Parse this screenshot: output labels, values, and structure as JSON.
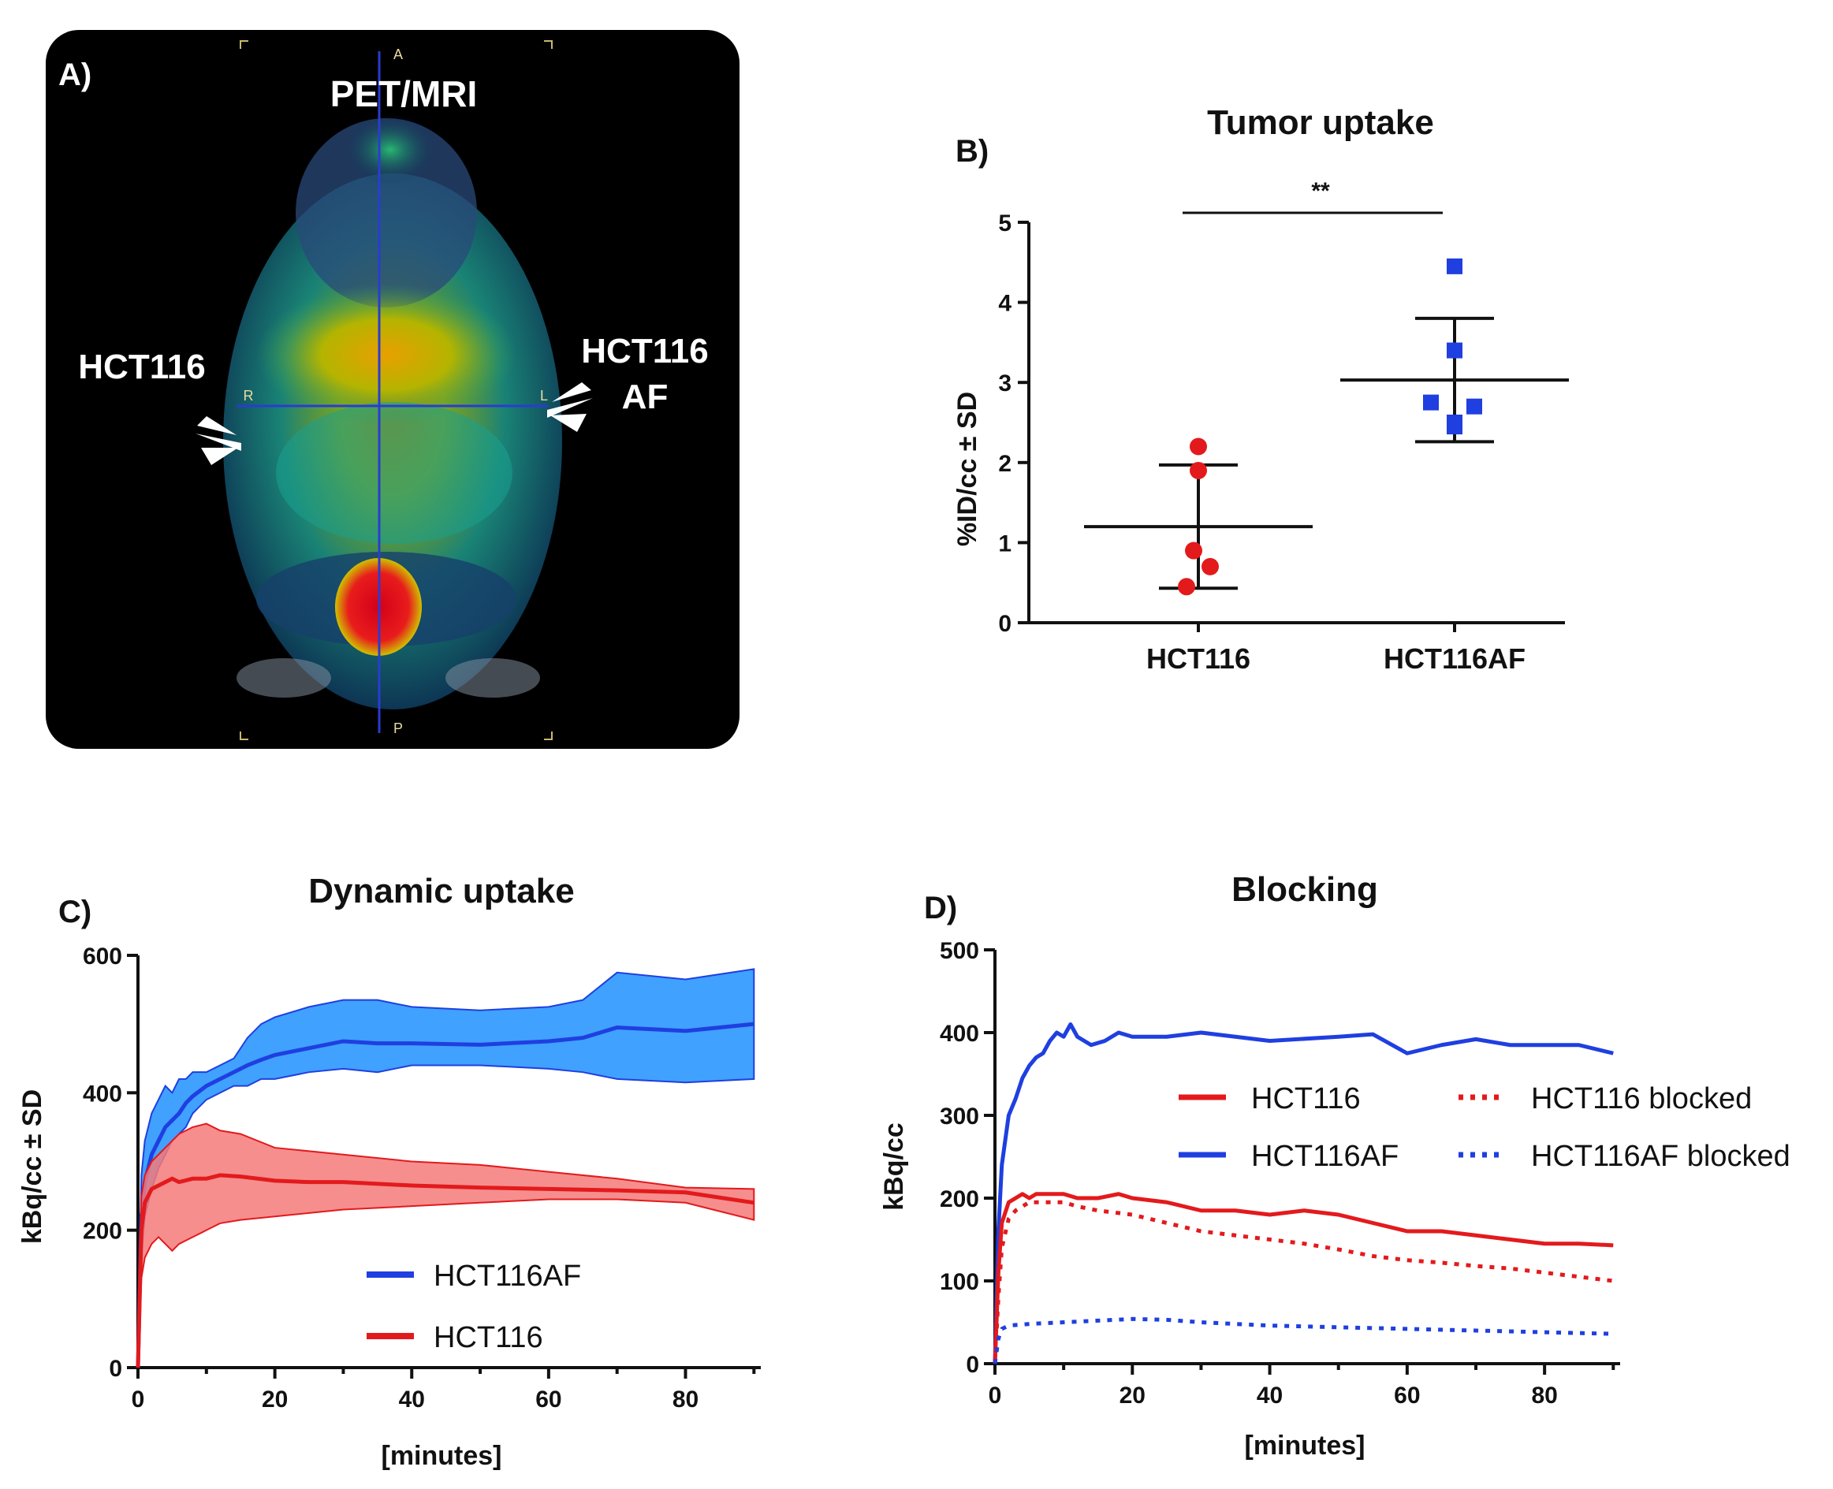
{
  "panel_a": {
    "letter": "A)",
    "modality": "PET/MRI",
    "left_label": "HCT116",
    "right_label_line1": "HCT116",
    "right_label_line2": "AF",
    "orientation": {
      "top": "A",
      "bottom": "P",
      "left": "R",
      "right": "L"
    }
  },
  "chart_data": [
    {
      "id": "B",
      "panel_letter": "B)",
      "type": "scatter",
      "title": "Tumor uptake",
      "ylabel": "%ID/cc ± SD",
      "ylim": [
        0,
        5
      ],
      "yticks": [
        "0",
        "1",
        "2",
        "3",
        "4",
        "5"
      ],
      "categories": [
        "HCT116",
        "HCT116AF"
      ],
      "significance": "**",
      "colors": {
        "HCT116": "#e31a1c",
        "HCT116AF": "#1f3fe0"
      },
      "series": [
        {
          "name": "HCT116",
          "marker": "circle",
          "values": [
            2.2,
            1.9,
            0.9,
            0.7,
            0.45
          ],
          "mean": 1.2,
          "sd": 0.77
        },
        {
          "name": "HCT116AF",
          "marker": "square",
          "values": [
            4.45,
            3.4,
            2.75,
            2.7,
            2.5,
            2.45
          ],
          "mean": 3.03,
          "sd": 0.77
        }
      ]
    },
    {
      "id": "C",
      "panel_letter": "C)",
      "type": "area",
      "title": "Dynamic uptake",
      "xlabel": "[minutes]",
      "ylabel": "kBq/cc ± SD",
      "xlim": [
        0,
        91
      ],
      "ylim": [
        0,
        600
      ],
      "xticks": [
        "0",
        "20",
        "40",
        "60",
        "80"
      ],
      "yticks": [
        "0",
        "200",
        "400",
        "600"
      ],
      "colors": {
        "HCT116AF": "#1f3fe0",
        "HCT116AF_fill": "#1e90ff",
        "HCT116": "#e31a1c",
        "HCT116_fill": "#f47a7a"
      },
      "series": [
        {
          "name": "HCT116AF",
          "x": [
            0,
            0.5,
            1,
            2,
            3,
            4,
            5,
            6,
            7,
            8,
            10,
            12,
            14,
            16,
            18,
            20,
            25,
            30,
            35,
            40,
            50,
            60,
            65,
            70,
            80,
            90
          ],
          "mean": [
            0,
            220,
            270,
            310,
            330,
            350,
            360,
            370,
            385,
            395,
            410,
            420,
            430,
            440,
            448,
            455,
            465,
            475,
            472,
            472,
            470,
            475,
            480,
            495,
            490,
            500
          ],
          "upper": [
            0,
            280,
            330,
            370,
            390,
            410,
            400,
            420,
            420,
            430,
            430,
            440,
            450,
            480,
            500,
            510,
            525,
            535,
            535,
            525,
            520,
            525,
            535,
            575,
            565,
            580
          ],
          "lower": [
            0,
            160,
            220,
            260,
            290,
            310,
            330,
            340,
            350,
            370,
            390,
            400,
            410,
            410,
            420,
            420,
            430,
            435,
            430,
            440,
            440,
            435,
            430,
            420,
            415,
            420
          ]
        },
        {
          "name": "HCT116",
          "x": [
            0,
            0.5,
            1,
            2,
            3,
            4,
            5,
            6,
            8,
            10,
            12,
            15,
            20,
            25,
            30,
            40,
            50,
            60,
            70,
            80,
            90
          ],
          "mean": [
            0,
            200,
            240,
            260,
            265,
            270,
            275,
            270,
            275,
            275,
            280,
            278,
            272,
            270,
            270,
            265,
            262,
            260,
            258,
            255,
            240
          ],
          "upper": [
            0,
            250,
            280,
            300,
            310,
            320,
            330,
            340,
            350,
            355,
            345,
            340,
            320,
            315,
            310,
            300,
            295,
            285,
            275,
            262,
            260
          ],
          "lower": [
            0,
            130,
            160,
            180,
            190,
            180,
            170,
            180,
            190,
            200,
            210,
            215,
            220,
            225,
            230,
            235,
            240,
            245,
            245,
            240,
            215
          ]
        }
      ],
      "legend": [
        {
          "name": "HCT116AF"
        },
        {
          "name": "HCT116"
        }
      ]
    },
    {
      "id": "D",
      "panel_letter": "D)",
      "type": "line",
      "title": "Blocking",
      "xlabel": "[minutes]",
      "ylabel": "kBq/cc",
      "xlim": [
        0,
        91
      ],
      "ylim": [
        0,
        500
      ],
      "xticks": [
        "0",
        "20",
        "40",
        "60",
        "80"
      ],
      "yticks": [
        "0",
        "100",
        "200",
        "300",
        "400",
        "500"
      ],
      "colors": {
        "HCT116": "#e31a1c",
        "HCT116AF": "#1f3fe0"
      },
      "series": [
        {
          "name": "HCT116AF",
          "style": "solid",
          "x": [
            0,
            0.5,
            1,
            2,
            3,
            4,
            5,
            6,
            7,
            8,
            9,
            10,
            11,
            12,
            14,
            16,
            18,
            20,
            25,
            30,
            35,
            40,
            50,
            55,
            60,
            65,
            70,
            75,
            80,
            85,
            90
          ],
          "y": [
            0,
            160,
            240,
            300,
            320,
            345,
            360,
            370,
            375,
            390,
            400,
            395,
            410,
            395,
            385,
            390,
            400,
            395,
            395,
            400,
            395,
            390,
            395,
            398,
            375,
            385,
            392,
            385,
            385,
            385,
            375
          ]
        },
        {
          "name": "HCT116",
          "style": "solid",
          "x": [
            0,
            0.5,
            1,
            2,
            3,
            4,
            5,
            6,
            8,
            10,
            12,
            15,
            18,
            20,
            25,
            30,
            35,
            40,
            45,
            50,
            55,
            60,
            65,
            70,
            75,
            80,
            85,
            90
          ],
          "y": [
            0,
            110,
            170,
            195,
            200,
            205,
            200,
            205,
            205,
            205,
            200,
            200,
            205,
            200,
            195,
            185,
            185,
            180,
            185,
            180,
            170,
            160,
            160,
            155,
            150,
            145,
            145,
            143
          ]
        },
        {
          "name": "HCT116 blocked",
          "style": "dotted",
          "x": [
            0,
            0.5,
            1,
            2,
            3,
            4,
            5,
            6,
            8,
            10,
            12,
            15,
            20,
            25,
            30,
            35,
            40,
            45,
            50,
            55,
            60,
            65,
            70,
            75,
            80,
            85,
            90
          ],
          "y": [
            0,
            80,
            140,
            175,
            185,
            190,
            195,
            195,
            195,
            195,
            190,
            185,
            180,
            170,
            160,
            155,
            150,
            145,
            138,
            130,
            125,
            122,
            118,
            115,
            110,
            105,
            100
          ]
        },
        {
          "name": "HCT116AF blocked",
          "style": "dotted",
          "x": [
            0,
            0.5,
            1,
            2,
            5,
            10,
            15,
            20,
            25,
            30,
            40,
            50,
            60,
            70,
            80,
            90
          ],
          "y": [
            0,
            30,
            42,
            46,
            48,
            50,
            52,
            54,
            53,
            50,
            46,
            44,
            42,
            40,
            38,
            36
          ]
        }
      ],
      "legend": [
        {
          "name": "HCT116",
          "style": "solid"
        },
        {
          "name": "HCT116AF",
          "style": "solid"
        },
        {
          "name": "HCT116 blocked",
          "style": "dotted"
        },
        {
          "name": "HCT116AF blocked",
          "style": "dotted"
        }
      ]
    }
  ]
}
